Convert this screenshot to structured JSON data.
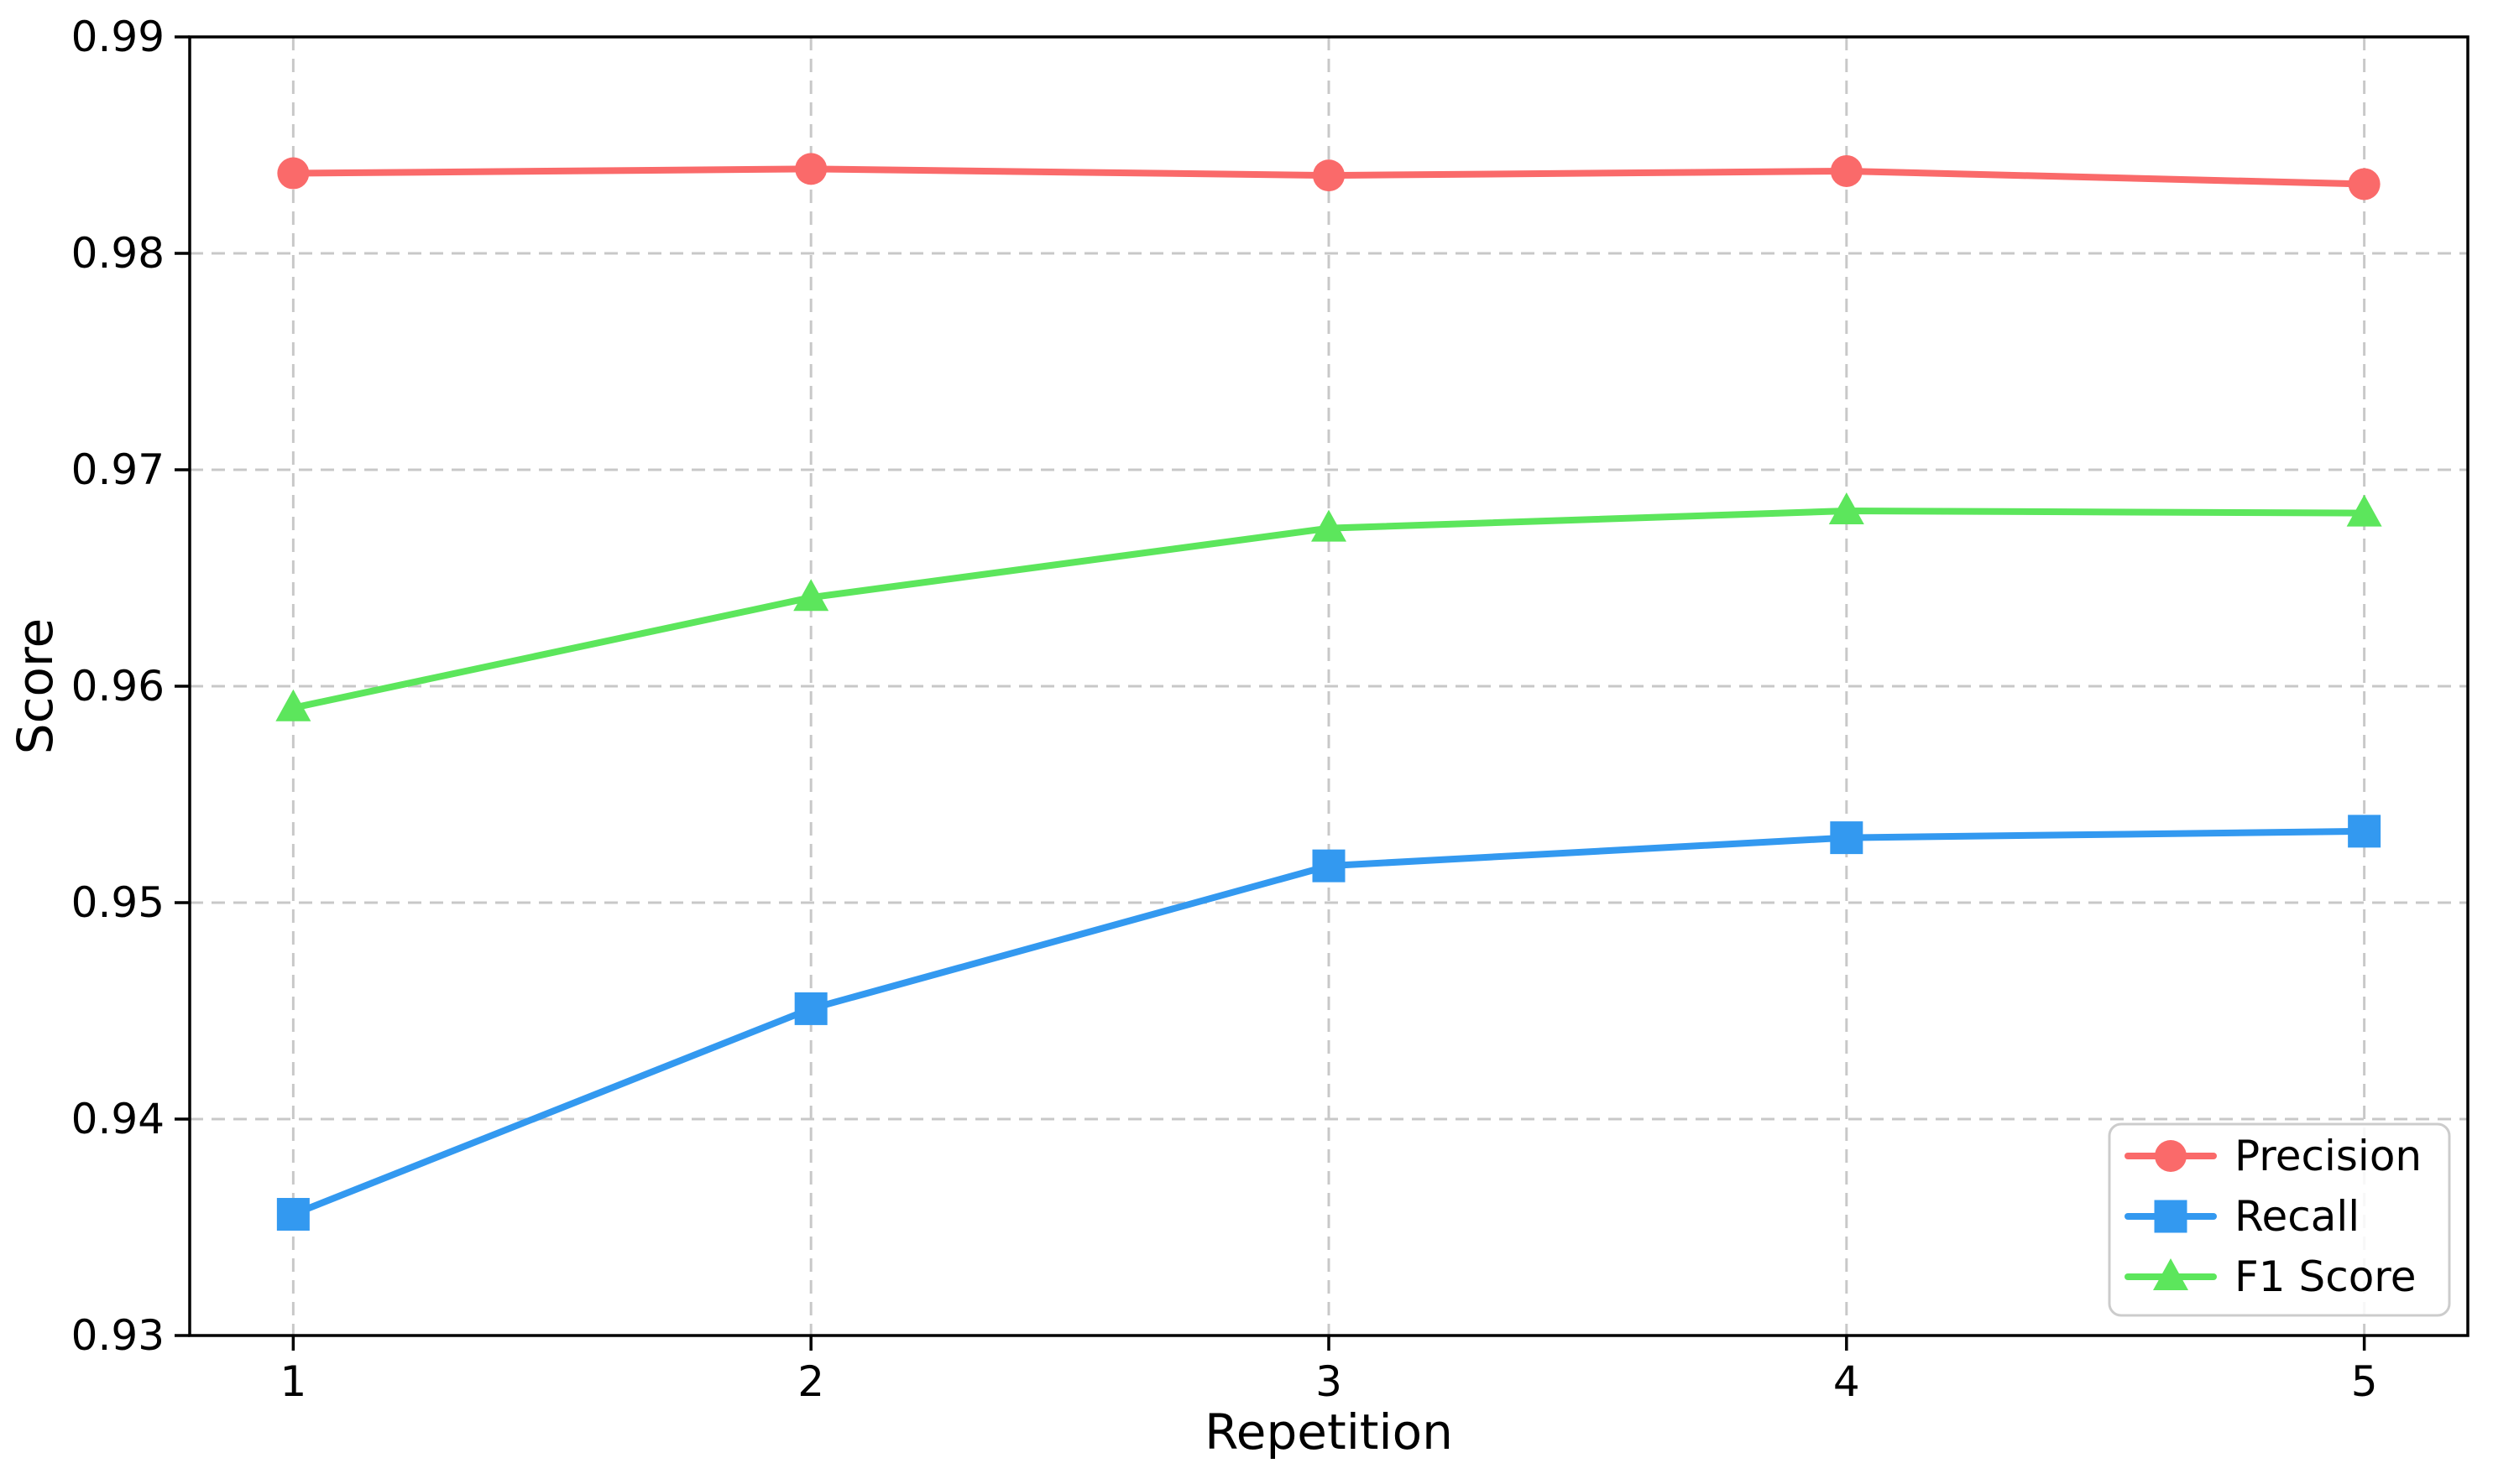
{
  "figure": {
    "background": "#ffffff"
  },
  "chart_data": {
    "type": "line",
    "xlabel": "Repetition",
    "ylabel": "Score",
    "x": [
      1,
      2,
      3,
      4,
      5
    ],
    "xticks": [
      "1",
      "2",
      "3",
      "4",
      "5"
    ],
    "yticks": [
      "0.93",
      "0.94",
      "0.95",
      "0.96",
      "0.97",
      "0.98",
      "0.99"
    ],
    "xlim": [
      0.8,
      5.2
    ],
    "ylim": [
      0.93,
      0.99
    ],
    "grid": "dashed",
    "grid_color": "#c8c8c8",
    "axis_color": "#000000",
    "legend": {
      "position": "lower right",
      "border_color": "#cccccc",
      "items": [
        "Precision",
        "Recall",
        "F1 Score"
      ]
    },
    "series": [
      {
        "name": "Precision",
        "color": "#fa6a6a",
        "marker": "circle",
        "values": [
          0.9837,
          0.9839,
          0.9836,
          0.9838,
          0.9832
        ]
      },
      {
        "name": "Recall",
        "color": "#3399f0",
        "marker": "square",
        "values": [
          0.9356,
          0.9451,
          0.9517,
          0.953,
          0.9533
        ]
      },
      {
        "name": "F1 Score",
        "color": "#5ce65c",
        "marker": "triangle",
        "values": [
          0.959,
          0.9641,
          0.9673,
          0.9681,
          0.968
        ]
      }
    ]
  }
}
